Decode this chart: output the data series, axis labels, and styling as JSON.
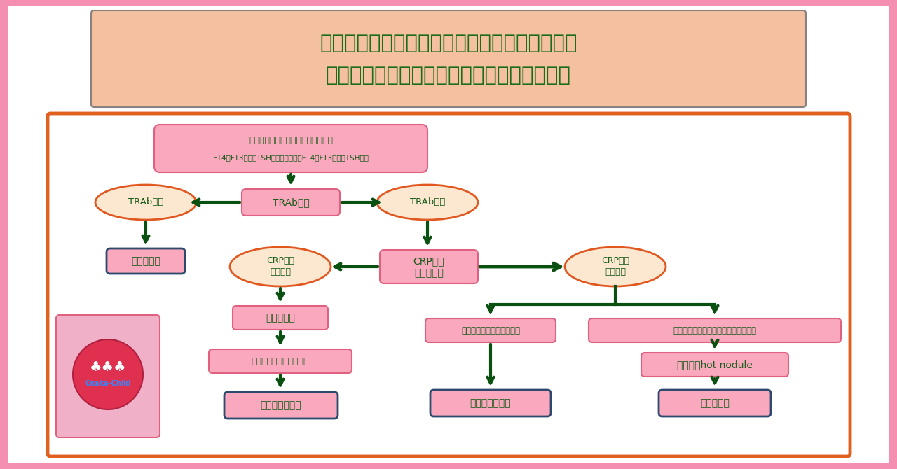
{
  "bg_outer": "#f48fb1",
  "bg_white": "#ffffff",
  "bg_inner_border": "#e06020",
  "title_box_fill": "#f4c0a0",
  "title_box_border": "#8a8080",
  "title_line1": "甲状腺機能了進症　（甲状腺中毒症）　の鑑別",
  "title_line2": "（放射性ヨード摄取率を測定できないとき）",
  "title_color": "#1a6e1a",
  "arrow_color": "#0a5010",
  "pink_fill": "#f9a8be",
  "pink_border": "#e06080",
  "dark_border": "#2d4a6e",
  "ellipse_fill": "#fce8d0",
  "ellipse_border": "#e05820",
  "text_green": "#1a5c1a",
  "logo_fill": "#f0b0c8",
  "logo_circle": "#e03050",
  "logo_text_color": "#3388ff",
  "nodes": {
    "top": {
      "text1": "甲状腺機能了進症（甲状腺中毒症）",
      "text2": "FT4・FT3高値・TSH低値　または　FT4・FT3正常・TSH低値"
    },
    "trab": "TRAb測定",
    "trab_pos": "TRAb陽性",
    "trab_neg": "TRAb陰性",
    "basedow": "バセドウ病",
    "crp": {
      "text1": "CRP測定",
      "text2": "圧痛の有無"
    },
    "crp_pos": {
      "text1": "CRP陽性",
      "text2": "圧痛あり"
    },
    "crp_neg": {
      "text1": "CRP陰性",
      "text2": "圧痛なし"
    },
    "echo": "超音波検査",
    "echo_confirm": "炎症性低エコー像を確認",
    "subacute": "亜急性甲状腺炎",
    "transient": "甲状腺機能了進症が一過性",
    "persistent": "甲状腺機能了進症が持続性・結節あり",
    "painless": "無痛性甲状腺炎",
    "sinchi": "シンチでhot nodule",
    "functional": "機能性結節"
  }
}
